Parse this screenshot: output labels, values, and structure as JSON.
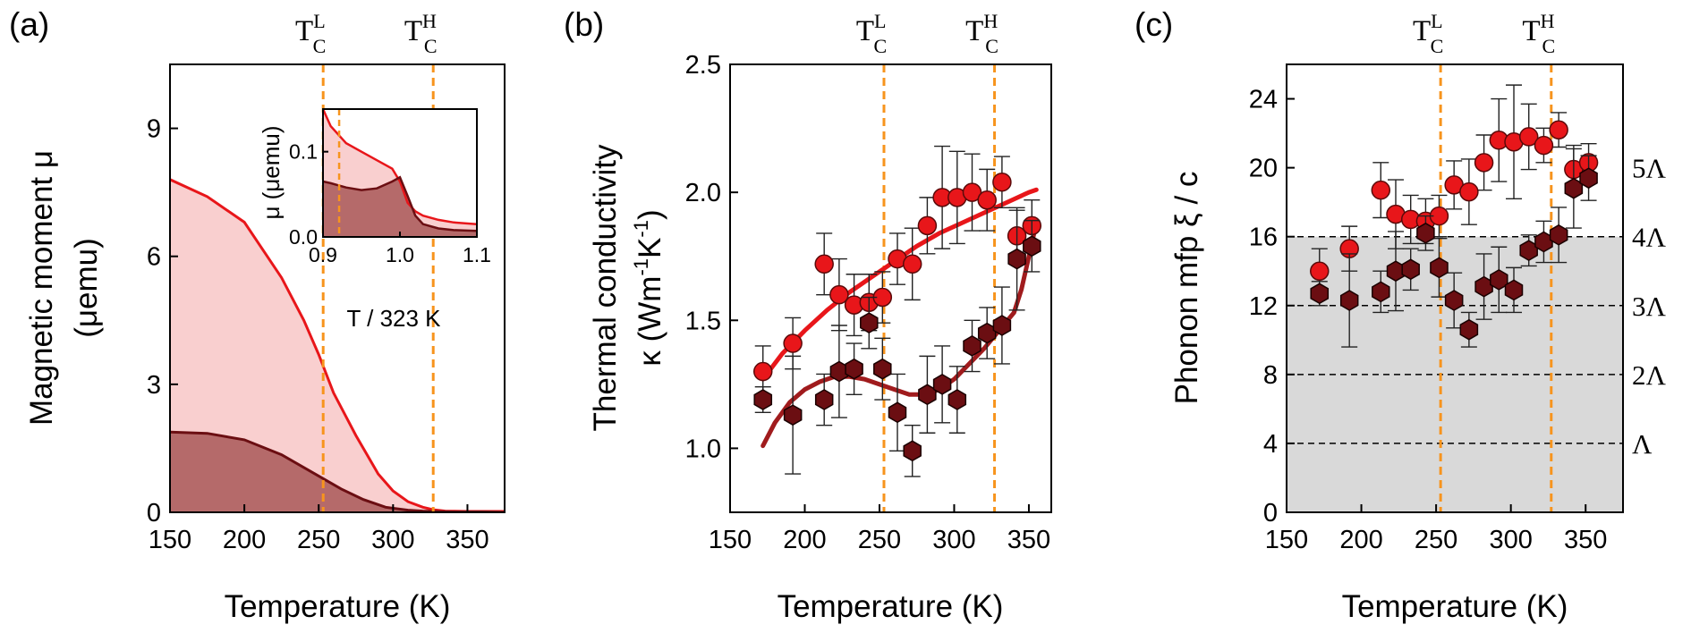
{
  "chart_data": [
    {
      "panel": "(a)",
      "type": "area",
      "xlabel": "Temperature (K)",
      "ylabel_line1": "Magnetic moment μ",
      "ylabel_line2": "(μemu)",
      "xlim": [
        150,
        375
      ],
      "ylim": [
        0,
        10.5
      ],
      "xticks": [
        150,
        200,
        250,
        300,
        350
      ],
      "yticks": [
        0,
        3,
        6,
        9
      ],
      "tc_low": {
        "label": "T",
        "sup": "L",
        "sub": "C",
        "x": 253
      },
      "tc_high": {
        "label": "T",
        "sup": "H",
        "sub": "C",
        "x": 327
      },
      "series": [
        {
          "name": "upper",
          "color": "#e8161a",
          "fill": "#f9cfcf",
          "x": [
            150,
            175,
            200,
            225,
            240,
            250,
            260,
            275,
            290,
            300,
            310,
            320,
            327,
            335,
            350,
            375
          ],
          "y": [
            7.8,
            7.4,
            6.8,
            5.5,
            4.5,
            3.7,
            2.8,
            1.8,
            0.9,
            0.5,
            0.25,
            0.12,
            0.06,
            0.03,
            0.02,
            0.02
          ]
        },
        {
          "name": "lower",
          "color": "#6b0e12",
          "fill": "#b56a6a",
          "x": [
            150,
            175,
            200,
            225,
            250,
            265,
            280,
            295,
            310,
            320,
            327,
            340,
            360,
            375
          ],
          "y": [
            1.88,
            1.85,
            1.7,
            1.35,
            0.85,
            0.55,
            0.3,
            0.12,
            0.05,
            0.03,
            0.02,
            0.01,
            0.01,
            0.0
          ]
        }
      ],
      "inset": {
        "xlabel": "T / 323 K",
        "ylabel": "μ (μemu)",
        "xlim": [
          0.9,
          1.1
        ],
        "ylim": [
          0,
          0.15
        ],
        "xticks": [
          0.9,
          1.0,
          1.1
        ],
        "yticks": [
          0.0,
          0.1
        ],
        "ytick_labels": [
          "0.0",
          "0.1"
        ],
        "xtick_labels": [
          "0.9",
          "1.0",
          "1.1"
        ],
        "series": [
          {
            "name": "upper",
            "x": [
              0.9,
              0.91,
              0.93,
              0.95,
              0.97,
              0.99,
              1.0,
              1.01,
              1.02,
              1.03,
              1.05,
              1.07,
              1.1
            ],
            "y": [
              0.15,
              0.13,
              0.11,
              0.1,
              0.09,
              0.08,
              0.065,
              0.04,
              0.03,
              0.025,
              0.02,
              0.017,
              0.015
            ]
          },
          {
            "name": "lower",
            "x": [
              0.9,
              0.91,
              0.93,
              0.95,
              0.97,
              0.99,
              1.0,
              1.01,
              1.02,
              1.03,
              1.05,
              1.07,
              1.1
            ],
            "y": [
              0.065,
              0.063,
              0.058,
              0.055,
              0.057,
              0.065,
              0.07,
              0.048,
              0.025,
              0.015,
              0.01,
              0.008,
              0.007
            ]
          }
        ]
      }
    },
    {
      "panel": "(b)",
      "type": "scatter",
      "xlabel": "Temperature (K)",
      "ylabel_line1": "Thermal conductivity",
      "ylabel_line2": "κ (Wm",
      "ylabel_sup1": "-1",
      "ylabel_mid": "K",
      "ylabel_sup2": "-1",
      "ylabel_end": ")",
      "xlim": [
        150,
        365
      ],
      "ylim": [
        0.75,
        2.5
      ],
      "xticks": [
        150,
        200,
        250,
        300,
        350
      ],
      "yticks": [
        1.0,
        1.5,
        2.0,
        2.5
      ],
      "ytick_labels": [
        "1.0",
        "1.5",
        "2.0",
        "2.5"
      ],
      "tc_low": {
        "label": "T",
        "sup": "L",
        "sub": "C",
        "x": 253
      },
      "tc_high": {
        "label": "T",
        "sup": "H",
        "sub": "C",
        "x": 327
      },
      "series": [
        {
          "name": "red circles",
          "marker": "circle",
          "color": "#e8161a",
          "x": [
            172,
            192,
            213,
            223,
            233,
            243,
            252,
            262,
            272,
            282,
            292,
            302,
            312,
            322,
            332,
            342,
            352
          ],
          "y": [
            1.3,
            1.41,
            1.72,
            1.6,
            1.56,
            1.57,
            1.59,
            1.74,
            1.72,
            1.87,
            1.98,
            1.98,
            2.0,
            1.97,
            2.04,
            1.83,
            1.87
          ],
          "err": [
            0.1,
            0.1,
            0.12,
            0.14,
            0.12,
            0.11,
            0.1,
            0.1,
            0.14,
            0.11,
            0.2,
            0.18,
            0.15,
            0.12,
            0.1,
            0.1,
            0.1
          ]
        },
        {
          "name": "dark hexagons",
          "marker": "hexagon",
          "color": "#6b0e12",
          "x": [
            172,
            192,
            213,
            223,
            233,
            243,
            252,
            262,
            272,
            282,
            292,
            302,
            312,
            322,
            332,
            342,
            352
          ],
          "y": [
            1.19,
            1.13,
            1.19,
            1.3,
            1.31,
            1.49,
            1.31,
            1.14,
            0.99,
            1.21,
            1.25,
            1.19,
            1.4,
            1.45,
            1.48,
            1.74,
            1.79
          ],
          "err": [
            0.05,
            0.23,
            0.1,
            0.18,
            0.1,
            0.1,
            0.12,
            0.15,
            0.1,
            0.15,
            0.15,
            0.13,
            0.1,
            0.1,
            0.15,
            0.2,
            0.1
          ]
        }
      ],
      "fits": [
        {
          "name": "red fit",
          "color": "#e8161a",
          "x": [
            172,
            185,
            200,
            215,
            230,
            245,
            260,
            275,
            290,
            305,
            320,
            335,
            350,
            355
          ],
          "y": [
            1.27,
            1.37,
            1.46,
            1.54,
            1.61,
            1.67,
            1.73,
            1.79,
            1.84,
            1.88,
            1.92,
            1.96,
            2.0,
            2.01
          ]
        },
        {
          "name": "dark fit",
          "color": "#a01b1d",
          "x": [
            172,
            180,
            190,
            200,
            210,
            220,
            230,
            240,
            250,
            260,
            270,
            280,
            290,
            300,
            310,
            320,
            330,
            340,
            345,
            350,
            355
          ],
          "y": [
            1.01,
            1.1,
            1.18,
            1.23,
            1.26,
            1.28,
            1.28,
            1.27,
            1.25,
            1.23,
            1.21,
            1.21,
            1.23,
            1.27,
            1.33,
            1.39,
            1.46,
            1.53,
            1.62,
            1.75,
            1.88
          ]
        }
      ]
    },
    {
      "panel": "(c)",
      "type": "scatter",
      "xlabel": "Temperature (K)",
      "ylabel": "Phonon mfp ξ / c",
      "xlim": [
        150,
        375
      ],
      "ylim": [
        0,
        26
      ],
      "xticks": [
        150,
        200,
        250,
        300,
        350
      ],
      "yticks": [
        0,
        4,
        8,
        12,
        16,
        20,
        24
      ],
      "shaded_upto": 16,
      "tc_low": {
        "label": "T",
        "sup": "L",
        "sub": "C",
        "x": 253
      },
      "tc_high": {
        "label": "T",
        "sup": "H",
        "sub": "C",
        "x": 327
      },
      "reference_lines": [
        {
          "y": 4,
          "label": "Λ"
        },
        {
          "y": 8,
          "label": "2Λ"
        },
        {
          "y": 12,
          "label": "3Λ"
        },
        {
          "y": 16,
          "label": "4Λ"
        },
        {
          "y": 20,
          "label": "5Λ"
        }
      ],
      "series": [
        {
          "name": "red circles",
          "marker": "circle",
          "color": "#e8161a",
          "x": [
            172,
            192,
            213,
            223,
            233,
            243,
            252,
            262,
            272,
            282,
            292,
            302,
            312,
            322,
            332,
            342,
            352
          ],
          "y": [
            14.0,
            15.3,
            18.7,
            17.3,
            17.0,
            16.9,
            17.2,
            19.0,
            18.6,
            20.3,
            21.6,
            21.5,
            21.8,
            21.3,
            22.2,
            19.9,
            20.3
          ],
          "err": [
            1.3,
            1.3,
            1.6,
            2.0,
            1.4,
            1.3,
            1.2,
            1.4,
            1.9,
            1.6,
            2.4,
            3.3,
            1.9,
            1.0,
            1.0,
            1.4,
            1.1
          ]
        },
        {
          "name": "dark hexagons",
          "marker": "hexagon",
          "color": "#6b0e12",
          "x": [
            172,
            192,
            213,
            223,
            233,
            243,
            252,
            262,
            272,
            282,
            292,
            302,
            312,
            322,
            332,
            342,
            352
          ],
          "y": [
            12.7,
            12.3,
            12.8,
            14.0,
            14.1,
            16.2,
            14.2,
            12.3,
            10.6,
            13.1,
            13.5,
            12.9,
            15.2,
            15.7,
            16.1,
            18.8,
            19.4
          ],
          "err": [
            0.7,
            2.7,
            1.2,
            2.3,
            1.2,
            1.0,
            1.7,
            1.6,
            1.0,
            1.9,
            1.9,
            1.3,
            0.9,
            1.2,
            1.6,
            2.3,
            1.3
          ]
        }
      ]
    }
  ]
}
